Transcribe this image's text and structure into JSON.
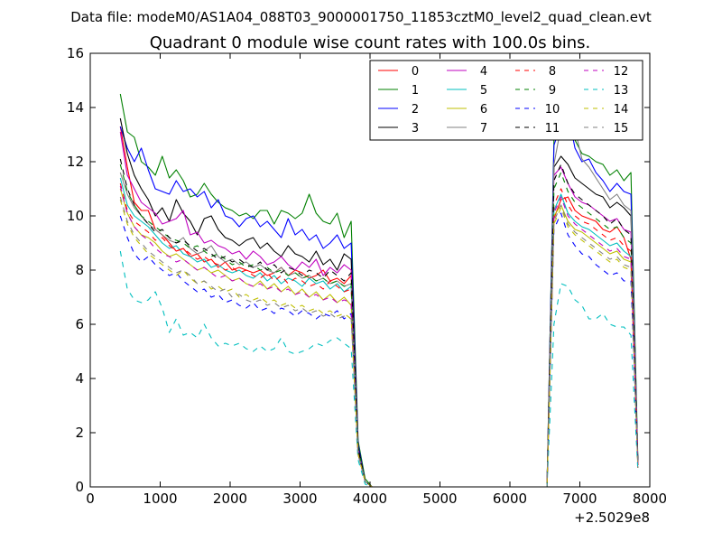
{
  "suptitle": "Data file: modeM0/AS1A04_088T03_9000001750_11853cztM0_level2_quad_clean.evt",
  "chart_data": {
    "type": "line",
    "title": "Quadrant 0 module wise count rates with 100.0s bins.",
    "xlabel": "",
    "ylabel": "",
    "x_offset_label": "+2.5029e8",
    "xlim": [
      0,
      8000
    ],
    "ylim": [
      0,
      16
    ],
    "x_ticks": [
      0,
      1000,
      2000,
      3000,
      4000,
      5000,
      6000,
      7000,
      8000
    ],
    "x_tick_labels": [
      "0",
      "1000",
      "2000",
      "3000",
      "4000",
      "5000",
      "6000",
      "7000",
      "8000"
    ],
    "y_ticks": [
      0,
      2,
      4,
      6,
      8,
      10,
      12,
      14,
      16
    ],
    "y_tick_labels": [
      "0",
      "2",
      "4",
      "6",
      "8",
      "10",
      "12",
      "14",
      "16"
    ],
    "grid": false,
    "legend_position": "top-right",
    "legend_columns": 4,
    "x": [
      430,
      530,
      630,
      730,
      830,
      930,
      1030,
      1130,
      1230,
      1330,
      1430,
      1530,
      1630,
      1730,
      1830,
      1930,
      2030,
      2130,
      2230,
      2330,
      2430,
      2530,
      2630,
      2730,
      2830,
      2930,
      3030,
      3130,
      3230,
      3330,
      3430,
      3530,
      3630,
      3730,
      3830,
      3930,
      4030,
      6530,
      6630,
      6730,
      6830,
      6930,
      7030,
      7130,
      7230,
      7330,
      7430,
      7530,
      7630,
      7730,
      7830
    ],
    "series": [
      {
        "name": "0",
        "color": "#ff0000",
        "dash": "solid",
        "values": [
          13.3,
          11.8,
          10.5,
          10.2,
          10.2,
          9.5,
          9.3,
          9.0,
          8.7,
          8.8,
          8.5,
          8.6,
          8.3,
          8.4,
          8.1,
          8.3,
          8.0,
          8.1,
          8.0,
          7.9,
          8.0,
          7.8,
          7.9,
          8.1,
          7.8,
          8.0,
          7.9,
          7.7,
          7.8,
          8.0,
          7.6,
          7.7,
          7.5,
          7.8,
          1.4,
          0.2,
          0.0,
          0.0,
          9.9,
          10.6,
          10.7,
          10.2,
          10.0,
          9.9,
          9.8,
          9.5,
          9.4,
          9.6,
          9.2,
          8.4,
          0.8
        ]
      },
      {
        "name": "1",
        "color": "#008000",
        "dash": "solid",
        "values": [
          14.5,
          13.1,
          12.9,
          12.0,
          11.8,
          11.5,
          12.2,
          11.4,
          11.7,
          11.3,
          10.7,
          10.8,
          11.2,
          10.8,
          10.5,
          10.3,
          10.2,
          10.0,
          10.1,
          9.9,
          10.2,
          10.2,
          9.7,
          10.2,
          10.1,
          9.9,
          10.1,
          10.8,
          10.1,
          9.8,
          9.7,
          10.1,
          9.2,
          9.8,
          1.7,
          0.3,
          0.0,
          0.0,
          12.8,
          13.7,
          13.5,
          12.8,
          12.3,
          12.2,
          12.0,
          11.9,
          11.5,
          11.7,
          11.3,
          11.6,
          1.0
        ]
      },
      {
        "name": "2",
        "color": "#0000ff",
        "dash": "solid",
        "values": [
          13.3,
          12.5,
          12.0,
          12.5,
          11.7,
          11.0,
          10.9,
          10.8,
          11.3,
          10.9,
          11.0,
          10.7,
          10.9,
          10.3,
          10.6,
          10.0,
          9.9,
          9.6,
          9.9,
          10.0,
          9.6,
          9.8,
          9.5,
          9.2,
          9.9,
          9.3,
          9.5,
          9.1,
          9.3,
          8.8,
          9.0,
          9.3,
          8.8,
          9.0,
          1.6,
          0.2,
          0.0,
          0.0,
          12.6,
          13.4,
          13.8,
          12.5,
          12.0,
          12.1,
          11.6,
          11.3,
          10.9,
          11.2,
          10.9,
          10.8,
          0.9
        ]
      },
      {
        "name": "3",
        "color": "#000000",
        "dash": "solid",
        "values": [
          13.6,
          12.3,
          11.5,
          11.0,
          10.6,
          10.0,
          10.3,
          9.8,
          10.6,
          10.1,
          9.8,
          9.3,
          9.9,
          10.0,
          9.5,
          9.2,
          9.1,
          8.9,
          9.1,
          9.2,
          8.8,
          9.0,
          8.7,
          8.5,
          8.9,
          8.6,
          8.5,
          8.3,
          8.7,
          8.2,
          8.4,
          8.0,
          8.6,
          8.4,
          1.5,
          0.2,
          0.0,
          0.0,
          11.8,
          12.2,
          11.9,
          11.4,
          11.2,
          11.0,
          10.8,
          10.7,
          10.3,
          10.5,
          10.3,
          10.0,
          0.9
        ]
      },
      {
        "name": "4",
        "color": "#bf00bf",
        "dash": "solid",
        "values": [
          13.1,
          11.5,
          11.0,
          10.5,
          10.3,
          10.1,
          9.7,
          9.8,
          9.9,
          10.2,
          9.3,
          9.4,
          9.0,
          9.1,
          8.9,
          8.8,
          8.6,
          8.7,
          8.4,
          8.7,
          8.5,
          8.2,
          8.3,
          8.5,
          8.2,
          8.0,
          8.3,
          8.1,
          8.4,
          7.8,
          8.1,
          7.9,
          8.2,
          8.0,
          1.4,
          0.2,
          0.0,
          0.0,
          11.5,
          11.8,
          11.2,
          10.7,
          10.5,
          10.4,
          10.2,
          10.0,
          9.8,
          9.9,
          9.5,
          9.4,
          0.8
        ]
      },
      {
        "name": "5",
        "color": "#00bfbf",
        "dash": "solid",
        "values": [
          11.4,
          10.4,
          10.0,
          9.8,
          9.6,
          9.3,
          9.0,
          8.8,
          8.9,
          8.6,
          8.5,
          8.3,
          8.4,
          8.1,
          8.2,
          8.0,
          7.9,
          8.0,
          7.8,
          7.7,
          7.9,
          7.6,
          7.8,
          7.5,
          7.7,
          7.6,
          7.4,
          7.7,
          7.5,
          7.6,
          7.3,
          7.5,
          7.2,
          7.4,
          1.3,
          0.2,
          0.0,
          0.0,
          10.2,
          10.8,
          10.1,
          9.8,
          9.6,
          9.5,
          9.3,
          9.1,
          8.9,
          9.0,
          8.7,
          8.5,
          0.8
        ]
      },
      {
        "name": "6",
        "color": "#bfbf00",
        "dash": "solid",
        "values": [
          11.0,
          10.1,
          9.6,
          9.3,
          9.2,
          9.0,
          8.7,
          8.5,
          8.6,
          8.4,
          8.2,
          8.0,
          8.1,
          7.9,
          8.0,
          7.8,
          7.6,
          7.7,
          7.5,
          7.4,
          7.6,
          7.3,
          7.5,
          7.2,
          7.4,
          7.1,
          7.3,
          7.0,
          7.2,
          6.9,
          7.1,
          6.8,
          7.0,
          6.7,
          1.2,
          0.2,
          0.0,
          0.0,
          10.0,
          10.4,
          9.8,
          9.5,
          9.4,
          9.2,
          9.0,
          8.8,
          8.6,
          8.7,
          8.4,
          8.3,
          0.8
        ]
      },
      {
        "name": "7",
        "color": "#808080",
        "dash": "solid",
        "values": [
          11.6,
          10.8,
          10.3,
          10.0,
          9.7,
          9.5,
          9.3,
          9.1,
          9.0,
          9.2,
          8.8,
          8.6,
          8.7,
          8.9,
          8.5,
          8.3,
          8.4,
          8.2,
          8.3,
          8.1,
          8.2,
          8.0,
          7.9,
          8.1,
          7.8,
          7.9,
          7.7,
          7.8,
          7.6,
          7.7,
          7.5,
          7.6,
          7.4,
          7.5,
          1.3,
          0.2,
          0.0,
          0.0,
          11.9,
          13.3,
          13.4,
          13.2,
          12.1,
          11.8,
          11.4,
          11.0,
          10.6,
          10.8,
          10.4,
          10.2,
          0.9
        ]
      },
      {
        "name": "8",
        "color": "#ff0000",
        "dash": "dashed",
        "values": [
          11.2,
          10.2,
          9.8,
          9.6,
          9.4,
          9.1,
          9.2,
          8.9,
          8.7,
          8.8,
          8.6,
          8.4,
          8.5,
          8.3,
          8.2,
          8.0,
          8.1,
          7.9,
          8.0,
          7.8,
          7.7,
          7.9,
          7.6,
          7.8,
          7.5,
          7.7,
          7.6,
          7.4,
          7.5,
          7.3,
          7.6,
          7.4,
          7.2,
          7.3,
          1.3,
          0.2,
          0.0,
          0.0,
          10.4,
          11.0,
          10.4,
          10.0,
          9.8,
          9.7,
          9.5,
          9.3,
          9.1,
          9.2,
          8.9,
          8.7,
          0.8
        ]
      },
      {
        "name": "9",
        "color": "#008000",
        "dash": "dashed",
        "values": [
          11.9,
          10.9,
          10.4,
          10.0,
          9.8,
          9.6,
          9.4,
          9.2,
          9.1,
          9.0,
          8.8,
          8.9,
          8.7,
          8.5,
          8.6,
          8.4,
          8.2,
          8.3,
          8.1,
          8.2,
          8.0,
          8.1,
          7.9,
          8.0,
          7.8,
          7.9,
          7.7,
          7.8,
          7.6,
          7.7,
          7.5,
          7.6,
          7.4,
          7.5,
          1.4,
          0.2,
          0.0,
          0.0,
          11.0,
          11.6,
          10.9,
          10.5,
          10.3,
          10.1,
          9.9,
          9.7,
          9.5,
          9.6,
          9.2,
          9.0,
          0.8
        ]
      },
      {
        "name": "10",
        "color": "#0000ff",
        "dash": "dashed",
        "values": [
          10.0,
          9.2,
          8.6,
          8.3,
          8.5,
          8.2,
          8.0,
          7.8,
          7.9,
          7.6,
          7.4,
          7.2,
          7.3,
          7.0,
          7.1,
          6.8,
          6.9,
          6.7,
          6.6,
          6.8,
          6.5,
          6.6,
          6.4,
          6.6,
          6.5,
          6.3,
          6.5,
          6.4,
          6.2,
          6.4,
          6.3,
          6.5,
          6.2,
          6.4,
          1.2,
          0.2,
          0.0,
          0.0,
          9.5,
          10.1,
          9.3,
          8.9,
          8.6,
          8.5,
          8.2,
          8.0,
          7.8,
          7.9,
          7.6,
          7.6,
          0.8
        ]
      },
      {
        "name": "11",
        "color": "#000000",
        "dash": "dashed",
        "values": [
          12.1,
          11.0,
          10.4,
          10.0,
          9.7,
          9.4,
          9.5,
          9.2,
          9.0,
          9.1,
          8.9,
          8.7,
          8.8,
          8.6,
          8.4,
          8.5,
          8.3,
          8.4,
          8.2,
          8.1,
          8.3,
          8.0,
          8.2,
          7.9,
          8.1,
          8.0,
          7.8,
          8.0,
          7.9,
          7.7,
          8.0,
          7.8,
          7.6,
          7.9,
          1.4,
          0.2,
          0.0,
          0.0,
          11.3,
          11.9,
          11.2,
          10.8,
          10.6,
          10.4,
          10.2,
          10.0,
          9.7,
          9.9,
          9.5,
          9.3,
          0.9
        ]
      },
      {
        "name": "12",
        "color": "#bf00bf",
        "dash": "dashed",
        "values": [
          11.1,
          10.1,
          9.6,
          9.3,
          9.1,
          8.8,
          8.6,
          8.5,
          8.3,
          8.4,
          8.2,
          8.0,
          8.1,
          7.9,
          7.7,
          7.8,
          7.6,
          7.7,
          7.5,
          7.4,
          7.5,
          7.3,
          7.4,
          7.2,
          7.3,
          7.1,
          7.2,
          7.0,
          7.1,
          6.9,
          7.0,
          6.8,
          6.9,
          6.8,
          1.2,
          0.2,
          0.0,
          0.0,
          10.1,
          10.7,
          10.0,
          9.7,
          9.5,
          9.3,
          9.1,
          8.9,
          8.7,
          8.8,
          8.5,
          8.4,
          0.8
        ]
      },
      {
        "name": "13",
        "color": "#00bfbf",
        "dash": "dashed",
        "values": [
          8.7,
          7.3,
          6.9,
          6.8,
          6.9,
          7.2,
          6.6,
          5.7,
          6.2,
          5.6,
          5.7,
          5.5,
          6.0,
          5.5,
          5.2,
          5.3,
          5.2,
          5.3,
          5.1,
          5.0,
          5.2,
          5.0,
          5.1,
          5.5,
          5.0,
          4.9,
          5.0,
          5.1,
          5.3,
          5.2,
          5.4,
          5.5,
          5.3,
          5.1,
          1.0,
          0.1,
          0.0,
          0.0,
          6.0,
          7.5,
          7.4,
          6.9,
          6.7,
          6.2,
          6.2,
          6.4,
          6.0,
          5.9,
          5.9,
          5.6,
          0.6
        ]
      },
      {
        "name": "14",
        "color": "#bfbf00",
        "dash": "dashed",
        "values": [
          10.6,
          9.7,
          9.2,
          8.9,
          8.6,
          8.4,
          8.2,
          8.0,
          7.8,
          8.0,
          7.7,
          7.5,
          7.6,
          7.3,
          7.4,
          7.2,
          7.3,
          7.0,
          7.1,
          6.9,
          7.0,
          6.8,
          6.9,
          6.7,
          6.8,
          6.6,
          6.7,
          6.5,
          6.6,
          6.4,
          6.5,
          6.3,
          6.4,
          6.2,
          1.2,
          0.2,
          0.0,
          0.0,
          9.7,
          10.3,
          9.6,
          9.3,
          9.1,
          8.9,
          8.7,
          8.5,
          8.3,
          8.4,
          8.1,
          8.0,
          0.7
        ]
      },
      {
        "name": "15",
        "color": "#808080",
        "dash": "dashed",
        "values": [
          10.7,
          9.8,
          9.3,
          9.0,
          8.7,
          8.5,
          8.3,
          8.1,
          7.9,
          8.0,
          7.8,
          7.5,
          7.6,
          7.4,
          7.2,
          7.3,
          7.0,
          7.1,
          6.9,
          6.8,
          6.9,
          6.7,
          6.8,
          6.6,
          6.7,
          6.5,
          6.6,
          6.4,
          6.5,
          6.3,
          6.4,
          6.2,
          6.3,
          6.2,
          1.2,
          0.2,
          0.0,
          0.0,
          9.8,
          10.4,
          9.7,
          9.4,
          9.2,
          9.0,
          8.8,
          8.6,
          8.4,
          8.5,
          8.2,
          8.1,
          0.7
        ]
      }
    ]
  }
}
